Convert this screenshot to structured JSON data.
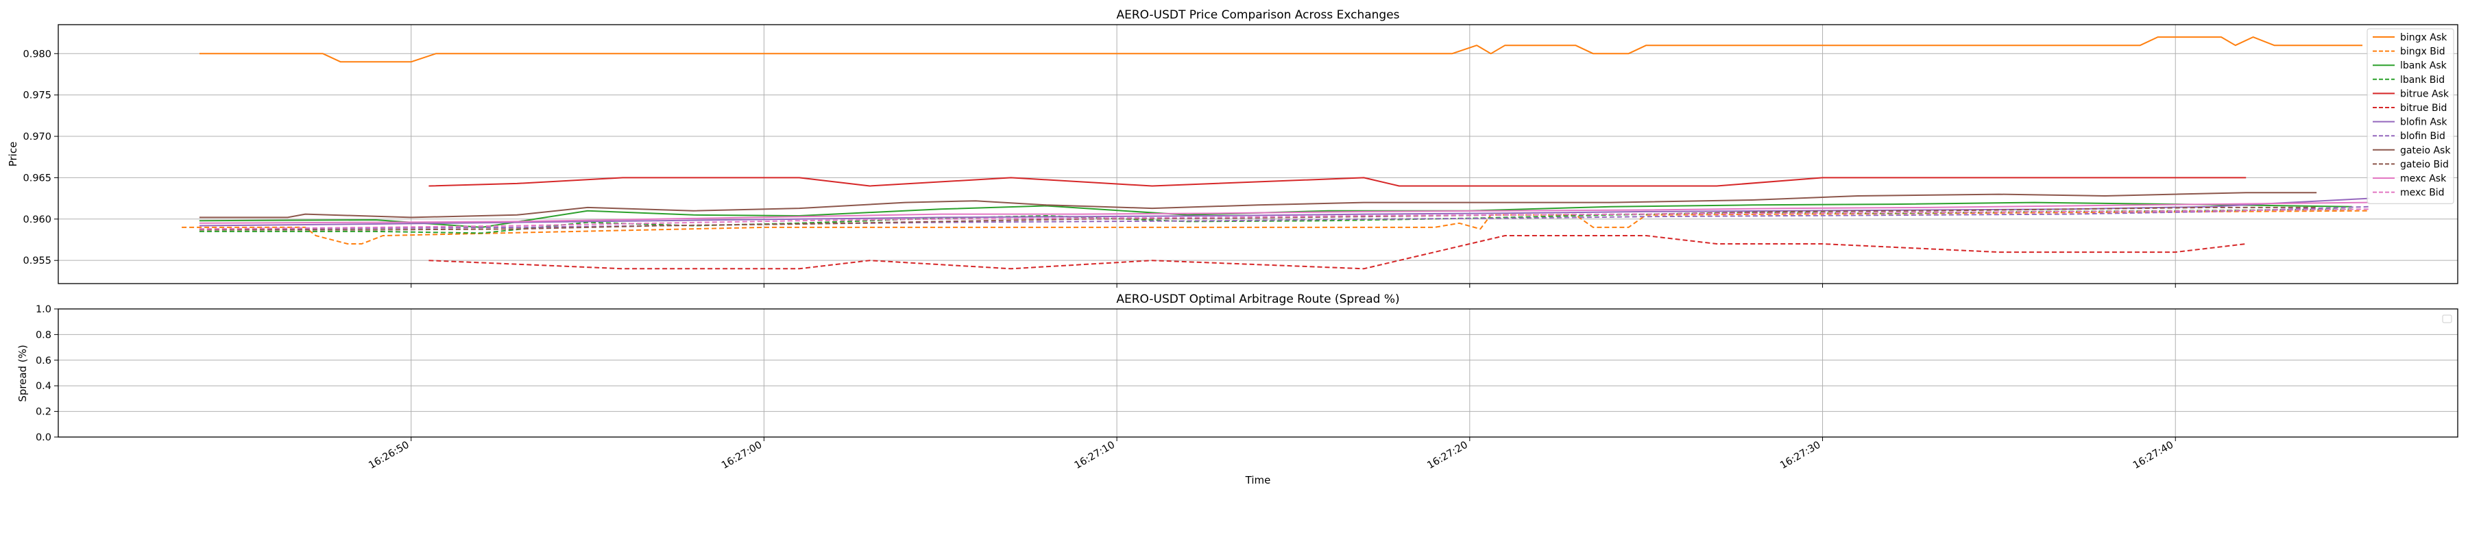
{
  "chart_data": [
    {
      "type": "line",
      "title": "AERO-USDT Price Comparison Across Exchanges",
      "xlabel": "",
      "ylabel": "Price",
      "ylim": [
        0.9522,
        0.9835
      ],
      "yticks": [
        "0.955",
        "0.960",
        "0.965",
        "0.970",
        "0.975",
        "0.980"
      ],
      "ytick_values": [
        0.955,
        0.96,
        0.965,
        0.97,
        0.975,
        0.98
      ],
      "x_range": [
        "16:26:40",
        "16:27:48"
      ],
      "xticks": [
        "16:26:50",
        "16:27:00",
        "16:27:10",
        "16:27:20",
        "16:27:30",
        "16:27:40"
      ],
      "grid": true,
      "legend_position": "upper right",
      "series": [
        {
          "name": "bingx Ask",
          "color": "#ff7f0e",
          "dash": "solid",
          "x": [
            "16:26:44",
            "16:26:47.5",
            "16:26:48",
            "16:26:50",
            "16:26:50.7",
            "16:27:19.5",
            "16:27:20.2",
            "16:27:20.6",
            "16:27:21",
            "16:27:23",
            "16:27:23.5",
            "16:27:24.5",
            "16:27:25",
            "16:27:39",
            "16:27:39.5",
            "16:27:41.3",
            "16:27:41.7",
            "16:27:42.2",
            "16:27:42.8",
            "16:27:45.3"
          ],
          "y": [
            0.98,
            0.98,
            0.979,
            0.979,
            0.98,
            0.98,
            0.981,
            0.98,
            0.981,
            0.981,
            0.98,
            0.98,
            0.981,
            0.981,
            0.982,
            0.982,
            0.981,
            0.982,
            0.981,
            0.981
          ]
        },
        {
          "name": "bingx Bid",
          "color": "#ff7f0e",
          "dash": "dashed",
          "x": [
            "16:26:43.5",
            "16:26:47",
            "16:26:47.3",
            "16:26:48.2",
            "16:26:48.6",
            "16:26:49.2",
            "16:27:00",
            "16:27:19",
            "16:27:19.7",
            "16:27:20.3",
            "16:27:20.6",
            "16:27:23",
            "16:27:23.5",
            "16:27:24.5",
            "16:27:25",
            "16:27:45.5"
          ],
          "y": [
            0.959,
            0.959,
            0.958,
            0.957,
            0.957,
            0.958,
            0.959,
            0.959,
            0.9595,
            0.9588,
            0.9605,
            0.9605,
            0.959,
            0.959,
            0.9605,
            0.961
          ]
        },
        {
          "name": "lbank Ask",
          "color": "#2ca02c",
          "dash": "solid",
          "x": [
            "16:26:44",
            "16:26:49",
            "16:26:52",
            "16:26:55",
            "16:26:58",
            "16:27:01",
            "16:27:05",
            "16:27:08",
            "16:27:12",
            "16:27:16",
            "16:27:20",
            "16:27:24",
            "16:27:28",
            "16:27:32",
            "16:27:36",
            "16:27:40",
            "16:27:45"
          ],
          "y": [
            0.9598,
            0.9599,
            0.959,
            0.961,
            0.9605,
            0.9604,
            0.9612,
            0.9616,
            0.9605,
            0.961,
            0.961,
            0.9615,
            0.9617,
            0.9618,
            0.962,
            0.9618,
            0.9615
          ]
        },
        {
          "name": "lbank Bid",
          "color": "#2ca02c",
          "dash": "dashed",
          "x": [
            "16:26:44",
            "16:26:49",
            "16:26:52",
            "16:26:55",
            "16:26:58",
            "16:27:01",
            "16:27:05",
            "16:27:08",
            "16:27:12",
            "16:27:16",
            "16:27:20",
            "16:27:24",
            "16:27:28",
            "16:27:32",
            "16:27:36",
            "16:27:40",
            "16:27:45"
          ],
          "y": [
            0.9585,
            0.9585,
            0.9583,
            0.9596,
            0.9592,
            0.9595,
            0.9601,
            0.9604,
            0.9597,
            0.9598,
            0.9601,
            0.9605,
            0.9608,
            0.9607,
            0.9609,
            0.961,
            0.9612
          ]
        },
        {
          "name": "bitrue Ask",
          "color": "#d62728",
          "dash": "solid",
          "x": [
            "16:26:50.5",
            "16:26:53",
            "16:26:56",
            "16:27:01",
            "16:27:03",
            "16:27:07",
            "16:27:11",
            "16:27:17",
            "16:27:18",
            "16:27:27",
            "16:27:30",
            "16:27:42"
          ],
          "y": [
            0.964,
            0.9643,
            0.965,
            0.965,
            0.964,
            0.965,
            0.964,
            0.965,
            0.964,
            0.964,
            0.965,
            0.965
          ]
        },
        {
          "name": "bitrue Bid",
          "color": "#d62728",
          "dash": "dashed",
          "x": [
            "16:26:50.5",
            "16:26:56",
            "16:27:01",
            "16:27:03",
            "16:27:07",
            "16:27:11",
            "16:27:17",
            "16:27:20",
            "16:27:21",
            "16:27:25",
            "16:27:27",
            "16:27:30",
            "16:27:35",
            "16:27:40",
            "16:27:42"
          ],
          "y": [
            0.955,
            0.954,
            0.954,
            0.955,
            0.954,
            0.955,
            0.954,
            0.957,
            0.958,
            0.958,
            0.957,
            0.957,
            0.956,
            0.956,
            0.957
          ]
        },
        {
          "name": "blofin Ask",
          "color": "#9467bd",
          "dash": "solid",
          "x": [
            "16:26:44",
            "16:26:49",
            "16:26:53",
            "16:26:57",
            "16:27:01",
            "16:27:05",
            "16:27:09",
            "16:27:13",
            "16:27:17",
            "16:27:21",
            "16:27:25",
            "16:27:29",
            "16:27:33",
            "16:27:37",
            "16:27:41",
            "16:27:45.5"
          ],
          "y": [
            0.9592,
            0.9594,
            0.9596,
            0.9598,
            0.96,
            0.9602,
            0.9603,
            0.9604,
            0.9606,
            0.9607,
            0.9609,
            0.961,
            0.9611,
            0.9612,
            0.9615,
            0.9625
          ]
        },
        {
          "name": "blofin Bid",
          "color": "#9467bd",
          "dash": "dashed",
          "x": [
            "16:26:44",
            "16:26:49",
            "16:26:53",
            "16:26:57",
            "16:27:01",
            "16:27:05",
            "16:27:09",
            "16:27:13",
            "16:27:17",
            "16:27:21",
            "16:27:25",
            "16:27:29",
            "16:27:33",
            "16:27:37",
            "16:27:41",
            "16:27:45.5"
          ],
          "y": [
            0.9588,
            0.9589,
            0.959,
            0.9592,
            0.9594,
            0.9596,
            0.9597,
            0.9598,
            0.96,
            0.9601,
            0.9603,
            0.9604,
            0.9605,
            0.9606,
            0.9609,
            0.9615
          ]
        },
        {
          "name": "gateio Ask",
          "color": "#8c564b",
          "dash": "solid",
          "x": [
            "16:26:44",
            "16:26:46.5",
            "16:26:47",
            "16:26:50",
            "16:26:53",
            "16:26:55",
            "16:26:58",
            "16:27:01",
            "16:27:04",
            "16:27:06",
            "16:27:08",
            "16:27:11",
            "16:27:14",
            "16:27:17",
            "16:27:20",
            "16:27:24",
            "16:27:28",
            "16:27:31",
            "16:27:35",
            "16:27:38",
            "16:27:42",
            "16:27:44"
          ],
          "y": [
            0.9602,
            0.9602,
            0.9606,
            0.9602,
            0.9605,
            0.9614,
            0.961,
            0.9613,
            0.962,
            0.9622,
            0.9617,
            0.9613,
            0.9617,
            0.962,
            0.962,
            0.962,
            0.9623,
            0.9628,
            0.963,
            0.9628,
            0.9632,
            0.9632
          ]
        },
        {
          "name": "gateio Bid",
          "color": "#8c564b",
          "dash": "dashed",
          "x": [
            "16:26:44",
            "16:26:49",
            "16:26:53",
            "16:26:57",
            "16:27:01",
            "16:27:05",
            "16:27:09",
            "16:27:13",
            "16:27:17",
            "16:27:21",
            "16:27:25",
            "16:27:29",
            "16:27:33",
            "16:27:37",
            "16:27:41",
            "16:27:44"
          ],
          "y": [
            0.9587,
            0.9587,
            0.9588,
            0.9592,
            0.9594,
            0.9597,
            0.96,
            0.9601,
            0.9603,
            0.9605,
            0.9606,
            0.9609,
            0.961,
            0.9612,
            0.9614,
            0.9614
          ]
        },
        {
          "name": "mexc Ask",
          "color": "#e377c2",
          "dash": "solid",
          "x": [
            "16:26:44",
            "16:26:49",
            "16:26:53",
            "16:26:57",
            "16:27:01",
            "16:27:05",
            "16:27:09",
            "16:27:13",
            "16:27:17",
            "16:27:21",
            "16:27:25",
            "16:27:29",
            "16:27:33",
            "16:27:37",
            "16:27:41",
            "16:27:45.5"
          ],
          "y": [
            0.9595,
            0.9596,
            0.9597,
            0.96,
            0.9603,
            0.9606,
            0.9606,
            0.9607,
            0.9609,
            0.961,
            0.9611,
            0.9613,
            0.9614,
            0.9616,
            0.9618,
            0.962
          ]
        },
        {
          "name": "mexc Bid",
          "color": "#e377c2",
          "dash": "dashed",
          "x": [
            "16:26:44",
            "16:26:49",
            "16:26:53",
            "16:26:57",
            "16:27:01",
            "16:27:05",
            "16:27:09",
            "16:27:13",
            "16:27:17",
            "16:27:21",
            "16:27:25",
            "16:27:29",
            "16:27:33",
            "16:27:37",
            "16:27:41",
            "16:27:45.5"
          ],
          "y": [
            0.9588,
            0.959,
            0.9592,
            0.9595,
            0.9598,
            0.96,
            0.9601,
            0.9602,
            0.9604,
            0.9605,
            0.9606,
            0.9607,
            0.9608,
            0.9609,
            0.961,
            0.9612
          ]
        }
      ]
    },
    {
      "type": "line",
      "title": "AERO-USDT Optimal Arbitrage Route (Spread %)",
      "xlabel": "Time",
      "ylabel": "Spread (%)",
      "ylim": [
        0.0,
        1.0
      ],
      "yticks": [
        "0.0",
        "0.2",
        "0.4",
        "0.6",
        "0.8",
        "1.0"
      ],
      "ytick_values": [
        0.0,
        0.2,
        0.4,
        0.6,
        0.8,
        1.0
      ],
      "x_range": [
        "16:26:40",
        "16:27:48"
      ],
      "xticks": [
        "16:26:50",
        "16:27:00",
        "16:27:10",
        "16:27:20",
        "16:27:30",
        "16:27:40"
      ],
      "grid": true,
      "legend_position": "upper right",
      "series": []
    }
  ]
}
